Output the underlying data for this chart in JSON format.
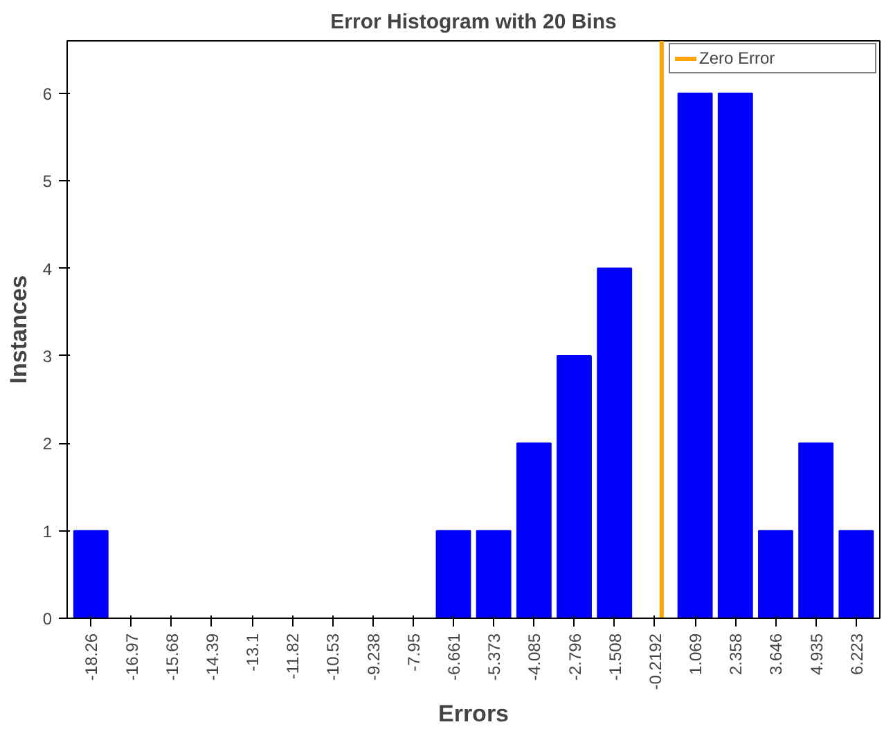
{
  "chart_data": {
    "type": "histogram",
    "title": "Error Histogram with 20 Bins",
    "xlabel": "Errors",
    "ylabel": "Instances",
    "bins": [
      -18.904,
      -17.616,
      -16.327,
      -15.039,
      -13.75,
      -12.461,
      -11.173,
      -9.884,
      -8.596,
      -7.307,
      -6.019,
      -4.73,
      -3.441,
      -2.153,
      -0.864,
      0.425,
      1.713,
      3.002,
      4.29,
      5.579,
      6.867
    ],
    "values": [
      1,
      0,
      0,
      0,
      0,
      0,
      0,
      0,
      0,
      1,
      1,
      2,
      3,
      4,
      0,
      6,
      6,
      1,
      2,
      1
    ],
    "color": "#0000ff",
    "xlim": [
      -19.02,
      6.98
    ],
    "ylim": [
      0,
      6.6
    ],
    "xticks": [
      {
        "value": -18.26,
        "label": "-18.26"
      },
      {
        "value": -16.971,
        "label": "-16.97"
      },
      {
        "value": -15.683,
        "label": "-15.68"
      },
      {
        "value": -14.394,
        "label": "-14.39"
      },
      {
        "value": -13.105,
        "label": "-13.1"
      },
      {
        "value": -11.817,
        "label": "-11.82"
      },
      {
        "value": -10.528,
        "label": "-10.53"
      },
      {
        "value": -9.238,
        "label": "-9.238"
      },
      {
        "value": -7.95,
        "label": "-7.95"
      },
      {
        "value": -6.661,
        "label": "-6.661"
      },
      {
        "value": -5.373,
        "label": "-5.373"
      },
      {
        "value": -4.085,
        "label": "-4.085"
      },
      {
        "value": -2.796,
        "label": "-2.796"
      },
      {
        "value": -1.508,
        "label": "-1.508"
      },
      {
        "value": -0.2192,
        "label": "-0.2192"
      },
      {
        "value": 1.069,
        "label": "1.069"
      },
      {
        "value": 2.358,
        "label": "2.358"
      },
      {
        "value": 3.646,
        "label": "3.646"
      },
      {
        "value": 4.935,
        "label": "4.935"
      },
      {
        "value": 6.223,
        "label": "6.223"
      }
    ],
    "yticks": [
      0,
      1,
      2,
      3,
      4,
      5,
      6
    ],
    "ref_lines": [
      {
        "axis": "x",
        "value": 0,
        "label": "Zero Error",
        "color": "#ffa500"
      }
    ],
    "legend": "top right",
    "grid": false
  }
}
